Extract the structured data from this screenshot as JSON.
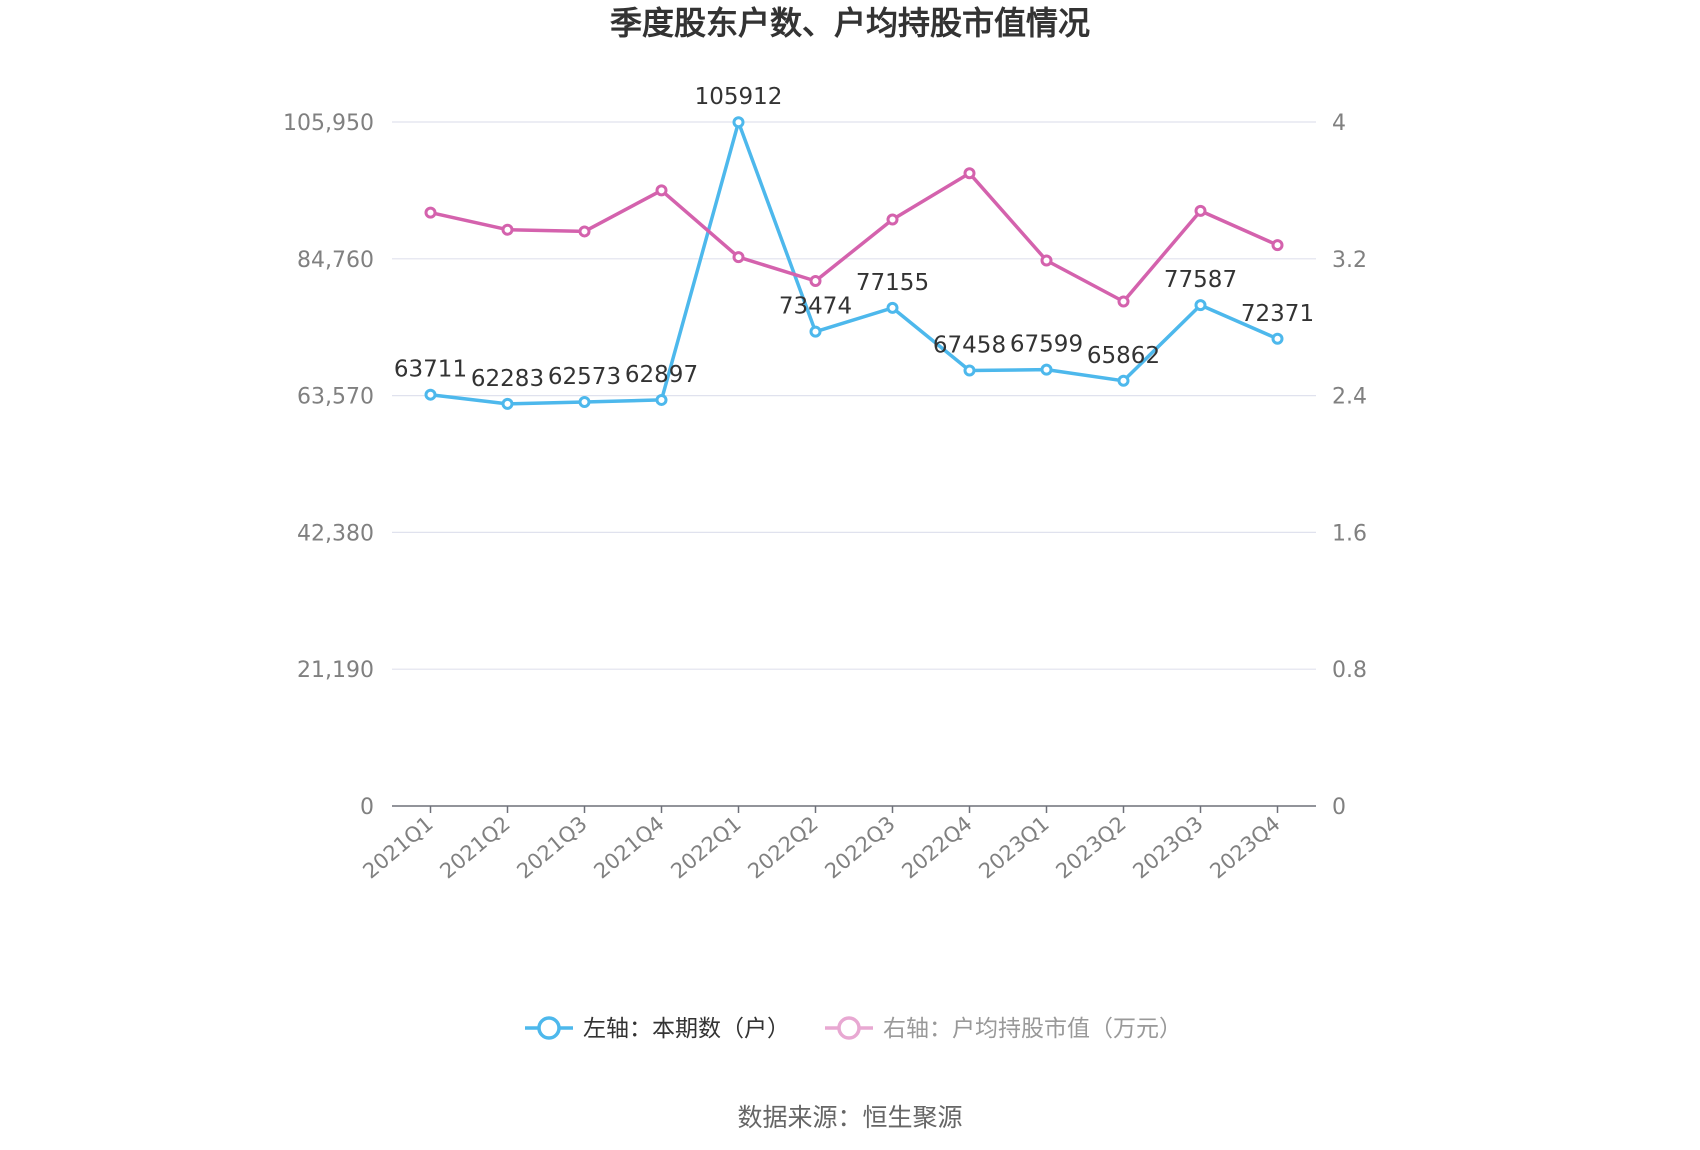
{
  "chart_data": {
    "type": "line",
    "title": "季度股东户数、户均持股市值情况",
    "categories": [
      "2021Q1",
      "2021Q2",
      "2021Q3",
      "2021Q4",
      "2022Q1",
      "2022Q2",
      "2022Q3",
      "2022Q4",
      "2023Q1",
      "2023Q2",
      "2023Q3",
      "2023Q4"
    ],
    "series": [
      {
        "name": "左轴：本期数（户）",
        "axis": "left",
        "color": "#4db8ec",
        "values": [
          63711,
          62283,
          62573,
          62897,
          105912,
          73474,
          77155,
          67458,
          67599,
          65862,
          77587,
          72371
        ],
        "labels": [
          "63711",
          "62283",
          "62573",
          "62897",
          "105912",
          "73474",
          "77155",
          "67458",
          "67599",
          "65862",
          "77587",
          "72371"
        ]
      },
      {
        "name": "右轴：户均持股市值（万元）",
        "axis": "right",
        "color": "#d462ad",
        "values": [
          3.47,
          3.37,
          3.36,
          3.6,
          3.21,
          3.07,
          3.43,
          3.7,
          3.19,
          2.95,
          3.48,
          3.28
        ]
      }
    ],
    "left_axis": {
      "ylim": [
        0,
        105950
      ],
      "ticks": [
        0,
        21190,
        42380,
        63570,
        84760,
        105950
      ],
      "tick_labels": [
        "0",
        "21,190",
        "42,380",
        "63,570",
        "84,760",
        "105,950"
      ]
    },
    "right_axis": {
      "ylim": [
        0,
        4
      ],
      "ticks": [
        0,
        0.8,
        1.6,
        2.4,
        3.2,
        4
      ],
      "tick_labels": [
        "0",
        "0.8",
        "1.6",
        "2.4",
        "3.2",
        "4"
      ]
    },
    "grid": true,
    "legend_position": "bottom-center",
    "source": "数据来源：恒生聚源"
  }
}
